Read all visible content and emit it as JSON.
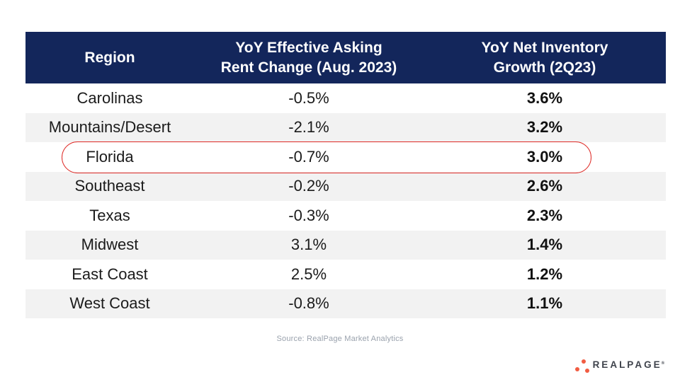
{
  "header": {
    "col1": "Region",
    "col2_line1": "YoY Effective Asking",
    "col2_line2": "Rent Change (Aug. 2023)",
    "col3_line1": "YoY Net Inventory",
    "col3_line2": "Growth (2Q23)"
  },
  "chart_data": {
    "type": "table",
    "title": "",
    "columns": [
      "Region",
      "YoY Effective Asking Rent Change (Aug. 2023)",
      "YoY Net Inventory Growth (2Q23)"
    ],
    "rows": [
      [
        "Carolinas",
        "-0.5%",
        "3.6%"
      ],
      [
        "Mountains/Desert",
        "-2.1%",
        "3.2%"
      ],
      [
        "Florida",
        "-0.7%",
        "3.0%"
      ],
      [
        "Southeast",
        "-0.2%",
        "2.6%"
      ],
      [
        "Texas",
        "-0.3%",
        "2.3%"
      ],
      [
        "Midwest",
        "3.1%",
        "1.4%"
      ],
      [
        "East Coast",
        "2.5%",
        "1.2%"
      ],
      [
        "West Coast",
        "-0.8%",
        "1.1%"
      ]
    ],
    "annotation": "Florida row circled in red",
    "source": "Source: RealPage Market Analytics"
  },
  "footer": {
    "source": "Source: RealPage Market Analytics"
  },
  "logo": {
    "brand": "REALPAGE",
    "trademark": "®"
  },
  "colors": {
    "header_bg": "#13265B",
    "row_alt_bg": "#F2F2F2",
    "highlight_stroke": "#DE2A26",
    "logo_dot": "#F15C42",
    "source_text": "#9AA2AD"
  }
}
